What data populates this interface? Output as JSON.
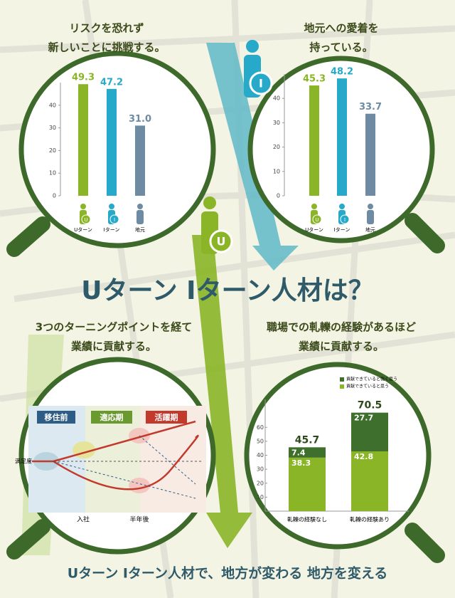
{
  "title": "Uターン Iターン人材は？",
  "footer": "Uターン Iターン人材で、地方が変わる 地方を変える",
  "badges": [
    "U",
    "I"
  ],
  "diagram": {
    "title": [
      "3つのターニングポイントを経て",
      "業績に貢献する。"
    ],
    "phases": [
      "移住前",
      "適応期",
      "活躍期"
    ],
    "y_label": "満足度",
    "x_labels": [
      "入社",
      "半年後"
    ]
  },
  "chart_data": [
    {
      "type": "bar",
      "title": [
        "リスクを恐れず",
        "新しいことに挑戦する。"
      ],
      "categories": [
        "Uターン",
        "Iターン",
        "地元"
      ],
      "values": [
        49.3,
        47.2,
        31.0
      ],
      "value_labels": [
        "49.3",
        "47.2",
        "31.0"
      ],
      "colors": [
        "#8ab526",
        "#27a9c9",
        "#6e8ba3"
      ],
      "ylim": [
        0,
        50
      ],
      "yticks": [
        0,
        10,
        20,
        30,
        40
      ],
      "grid": false
    },
    {
      "type": "bar",
      "title": [
        "地元への愛着を",
        "持っている。"
      ],
      "categories": [
        "Uターン",
        "Iターン",
        "地元"
      ],
      "values": [
        45.3,
        48.2,
        33.7
      ],
      "colors": [
        "#8ab526",
        "#27a9c9",
        "#6e8ba3"
      ],
      "ylim": [
        0,
        50
      ],
      "yticks": [
        0,
        10,
        20,
        30,
        40
      ],
      "grid": false
    },
    {
      "type": "stacked_bar",
      "title": [
        "職場での軋轢の経験があるほど",
        "業績に貢献する。"
      ],
      "categories": [
        "軋轢の経験なし",
        "軋轢の経験あり"
      ],
      "series": [
        {
          "name": "貢献できていると思う",
          "color": "#8ab526",
          "values": [
            38.3,
            42.8
          ]
        },
        {
          "name": "貢献できていると強く思う",
          "color": "#3f6f2c",
          "values": [
            7.4,
            27.7
          ]
        }
      ],
      "totals": [
        45.7,
        70.5
      ],
      "ylim": [
        0,
        80
      ],
      "yticks": [
        10,
        20,
        30,
        40,
        50,
        60
      ],
      "legend": "top-left"
    }
  ]
}
